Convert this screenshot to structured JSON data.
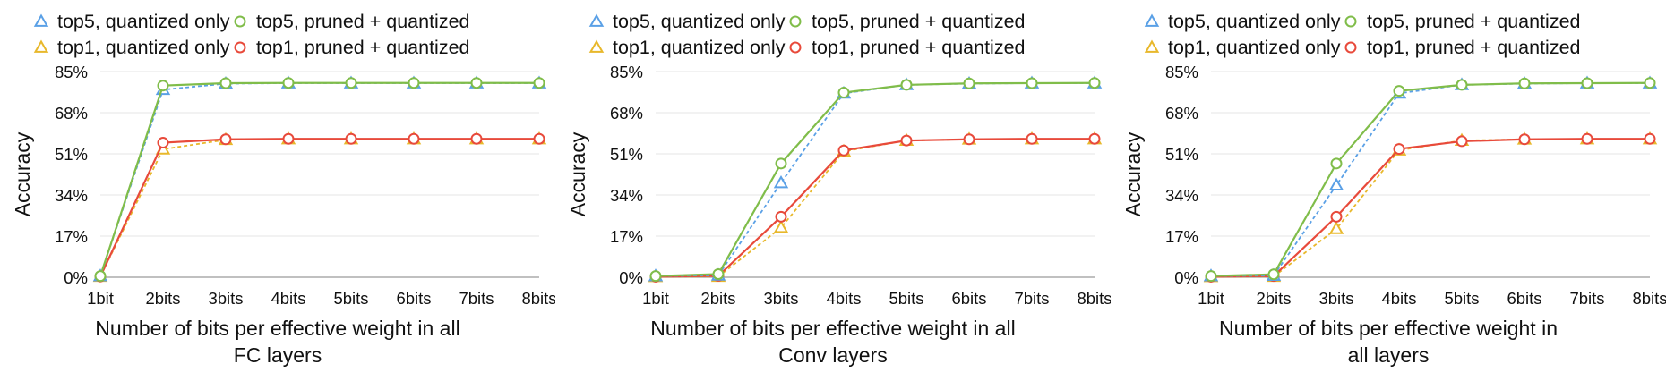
{
  "chart_data": [
    {
      "type": "line",
      "ylabel": "Accuracy",
      "xlabel": "Number of bits per effective weight in all FC layers",
      "xlabel_lines": [
        "Number of bits per effective weight in all",
        "FC layers"
      ],
      "categories": [
        "1bit",
        "2bits",
        "3bits",
        "4bits",
        "5bits",
        "6bits",
        "7bits",
        "8bits"
      ],
      "ylim": [
        0,
        85
      ],
      "yticks": [
        "0%",
        "17%",
        "34%",
        "51%",
        "68%",
        "85%"
      ],
      "grid": true,
      "legend_position": "top",
      "series": [
        {
          "name": "top5, quantized only",
          "color": "#5aa0e6",
          "marker": "triangle",
          "dash": true,
          "values": [
            0.5,
            77.5,
            80.0,
            80.2,
            80.2,
            80.2,
            80.2,
            80.2
          ]
        },
        {
          "name": "top5, pruned + quantized",
          "color": "#80bd4a",
          "marker": "circle",
          "dash": false,
          "values": [
            0.5,
            79.2,
            80.2,
            80.3,
            80.3,
            80.3,
            80.3,
            80.3
          ]
        },
        {
          "name": "top1, quantized only",
          "color": "#e8b82b",
          "marker": "triangle",
          "dash": true,
          "values": [
            0.3,
            52.9,
            56.8,
            57.1,
            57.1,
            57.1,
            57.1,
            57.1
          ]
        },
        {
          "name": "top1, pruned + quantized",
          "color": "#e84a3b",
          "marker": "circle",
          "dash": false,
          "values": [
            0.3,
            55.6,
            57.0,
            57.2,
            57.2,
            57.2,
            57.2,
            57.2
          ]
        }
      ]
    },
    {
      "type": "line",
      "ylabel": "Accuracy",
      "xlabel": "Number of bits per effective weight in all Conv layers",
      "xlabel_lines": [
        "Number of bits per effective weight in all",
        "Conv layers"
      ],
      "categories": [
        "1bit",
        "2bits",
        "3bits",
        "4bits",
        "5bits",
        "6bits",
        "7bits",
        "8bits"
      ],
      "ylim": [
        0,
        85
      ],
      "yticks": [
        "0%",
        "17%",
        "34%",
        "51%",
        "68%",
        "85%"
      ],
      "grid": true,
      "legend_position": "top",
      "series": [
        {
          "name": "top5, quantized only",
          "color": "#5aa0e6",
          "marker": "triangle",
          "dash": true,
          "values": [
            0.5,
            0.8,
            39.0,
            76.0,
            79.5,
            80.0,
            80.2,
            80.2
          ]
        },
        {
          "name": "top5, pruned + quantized",
          "color": "#80bd4a",
          "marker": "circle",
          "dash": false,
          "values": [
            0.5,
            1.3,
            47.0,
            76.3,
            79.5,
            80.1,
            80.2,
            80.3
          ]
        },
        {
          "name": "top1, quantized only",
          "color": "#e8b82b",
          "marker": "triangle",
          "dash": true,
          "values": [
            0.2,
            0.3,
            20.5,
            52.0,
            56.5,
            57.0,
            57.1,
            57.1
          ]
        },
        {
          "name": "top1, pruned + quantized",
          "color": "#e84a3b",
          "marker": "circle",
          "dash": false,
          "values": [
            0.2,
            0.6,
            25.0,
            52.4,
            56.5,
            57.0,
            57.2,
            57.2
          ]
        }
      ]
    },
    {
      "type": "line",
      "ylabel": "Accuracy",
      "xlabel": "Number of bits per effective weight in all layers",
      "xlabel_lines": [
        "Number of bits per effective weight in",
        "all layers"
      ],
      "categories": [
        "1bit",
        "2bits",
        "3bits",
        "4bits",
        "5bits",
        "6bits",
        "7bits",
        "8bits"
      ],
      "ylim": [
        0,
        85
      ],
      "yticks": [
        "0%",
        "17%",
        "34%",
        "51%",
        "68%",
        "85%"
      ],
      "grid": true,
      "legend_position": "top",
      "series": [
        {
          "name": "top5, quantized only",
          "color": "#5aa0e6",
          "marker": "triangle",
          "dash": true,
          "values": [
            0.5,
            0.7,
            38.0,
            76.0,
            79.5,
            80.0,
            80.2,
            80.2
          ]
        },
        {
          "name": "top5, pruned + quantized",
          "color": "#80bd4a",
          "marker": "circle",
          "dash": false,
          "values": [
            0.5,
            1.2,
            47.0,
            77.0,
            79.5,
            80.1,
            80.2,
            80.3
          ]
        },
        {
          "name": "top1, quantized only",
          "color": "#e8b82b",
          "marker": "triangle",
          "dash": true,
          "values": [
            0.2,
            0.3,
            20.0,
            52.5,
            56.5,
            57.0,
            57.1,
            57.1
          ]
        },
        {
          "name": "top1, pruned + quantized",
          "color": "#e84a3b",
          "marker": "circle",
          "dash": false,
          "values": [
            0.2,
            0.5,
            25.0,
            53.0,
            56.2,
            57.0,
            57.2,
            57.2
          ]
        }
      ]
    }
  ]
}
